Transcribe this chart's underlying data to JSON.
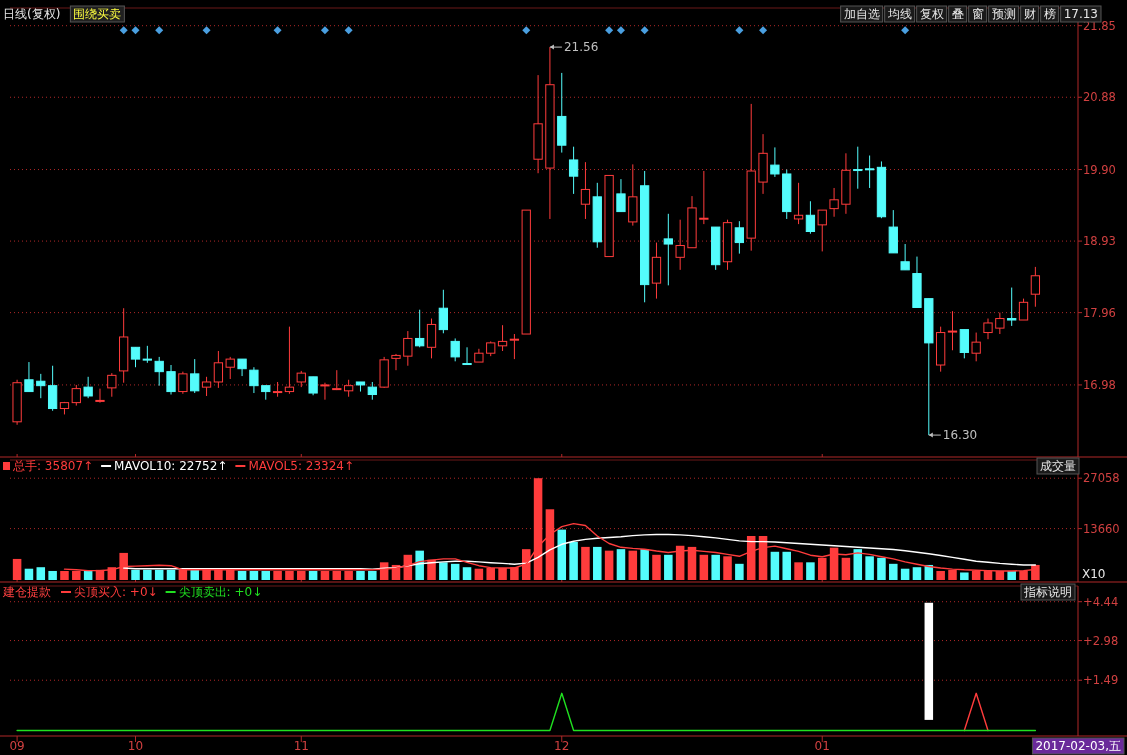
{
  "chart_data": [
    {
      "type": "candlestick",
      "title": "日线(复权)",
      "subtitle": "围绕买卖",
      "categories": [
        "09",
        null,
        null,
        null,
        null,
        null,
        null,
        null,
        null,
        null,
        "10",
        null,
        null,
        null,
        null,
        null,
        null,
        null,
        null,
        null,
        null,
        null,
        null,
        null,
        "11",
        null,
        null,
        null,
        null,
        null,
        null,
        null,
        null,
        null,
        null,
        null,
        null,
        null,
        null,
        null,
        null,
        null,
        null,
        null,
        null,
        null,
        "12",
        null,
        null,
        null,
        null,
        null,
        null,
        null,
        null,
        null,
        null,
        null,
        null,
        null,
        null,
        null,
        null,
        null,
        null,
        null,
        null,
        null,
        "01",
        null,
        null,
        null,
        null,
        null,
        null,
        null,
        null,
        null,
        null,
        null,
        null,
        null,
        null,
        null,
        null,
        null,
        null
      ],
      "ohlc": [
        [
          16.48,
          17.05,
          16.44,
          17.01
        ],
        [
          17.05,
          17.29,
          16.89,
          16.89
        ],
        [
          17.03,
          17.13,
          16.8,
          16.97
        ],
        [
          16.97,
          17.24,
          16.63,
          16.66
        ],
        [
          16.66,
          16.75,
          16.58,
          16.74
        ],
        [
          16.74,
          16.98,
          16.7,
          16.93
        ],
        [
          16.95,
          17.09,
          16.8,
          16.83
        ],
        [
          16.76,
          16.93,
          16.74,
          16.77
        ],
        [
          16.94,
          17.14,
          16.82,
          17.11
        ],
        [
          17.17,
          18.02,
          17.01,
          17.63
        ],
        [
          17.49,
          17.49,
          17.22,
          17.33
        ],
        [
          17.33,
          17.51,
          17.28,
          17.32
        ],
        [
          17.3,
          17.36,
          16.97,
          17.16
        ],
        [
          17.16,
          17.25,
          16.85,
          16.89
        ],
        [
          16.89,
          17.16,
          16.86,
          17.13
        ],
        [
          17.13,
          17.33,
          16.87,
          16.9
        ],
        [
          16.95,
          17.09,
          16.83,
          17.02
        ],
        [
          17.02,
          17.44,
          16.94,
          17.28
        ],
        [
          17.22,
          17.36,
          17.06,
          17.33
        ],
        [
          17.33,
          17.33,
          17.1,
          17.2
        ],
        [
          17.18,
          17.22,
          16.87,
          16.97
        ],
        [
          16.97,
          16.97,
          16.78,
          16.89
        ],
        [
          16.88,
          17.02,
          16.82,
          16.89
        ],
        [
          16.89,
          17.77,
          16.86,
          16.95
        ],
        [
          17.02,
          17.17,
          16.95,
          17.14
        ],
        [
          17.09,
          17.09,
          16.84,
          16.87
        ],
        [
          16.97,
          17.01,
          16.78,
          16.98
        ],
        [
          16.92,
          17.18,
          16.91,
          16.93
        ],
        [
          16.9,
          17.05,
          16.82,
          16.97
        ],
        [
          17.02,
          17.02,
          16.89,
          16.98
        ],
        [
          16.95,
          17.02,
          16.78,
          16.85
        ],
        [
          16.95,
          17.36,
          16.94,
          17.32
        ],
        [
          17.34,
          17.4,
          17.18,
          17.38
        ],
        [
          17.37,
          17.71,
          17.24,
          17.61
        ],
        [
          17.61,
          18.0,
          17.49,
          17.51
        ],
        [
          17.49,
          17.88,
          17.34,
          17.8
        ],
        [
          18.02,
          18.27,
          17.68,
          17.73
        ],
        [
          17.57,
          17.61,
          17.3,
          17.36
        ],
        [
          17.27,
          17.49,
          17.26,
          17.26
        ],
        [
          17.29,
          17.47,
          17.29,
          17.41
        ],
        [
          17.41,
          17.57,
          17.37,
          17.55
        ],
        [
          17.51,
          17.79,
          17.44,
          17.57
        ],
        [
          17.59,
          17.67,
          17.33,
          17.6
        ],
        [
          17.67,
          19.35,
          17.67,
          19.35
        ],
        [
          20.04,
          21.18,
          19.85,
          20.52
        ],
        [
          19.92,
          21.56,
          19.23,
          21.05
        ],
        [
          20.62,
          21.21,
          20.13,
          20.23
        ],
        [
          20.03,
          20.21,
          19.57,
          19.81
        ],
        [
          19.43,
          20.0,
          19.23,
          19.63
        ],
        [
          19.53,
          19.72,
          18.84,
          18.92
        ],
        [
          18.72,
          19.82,
          18.72,
          19.82
        ],
        [
          19.57,
          19.77,
          19.33,
          19.33
        ],
        [
          19.19,
          19.97,
          19.14,
          19.53
        ],
        [
          19.68,
          19.88,
          18.1,
          18.34
        ],
        [
          18.36,
          18.91,
          18.15,
          18.71
        ],
        [
          18.96,
          19.3,
          18.33,
          18.89
        ],
        [
          18.71,
          19.22,
          18.54,
          18.87
        ],
        [
          18.84,
          19.54,
          18.84,
          19.38
        ],
        [
          19.23,
          19.88,
          19.16,
          19.24
        ],
        [
          19.12,
          19.12,
          18.54,
          18.61
        ],
        [
          18.65,
          19.22,
          18.54,
          19.18
        ],
        [
          19.11,
          19.2,
          18.76,
          18.91
        ],
        [
          18.97,
          20.79,
          18.8,
          19.88
        ],
        [
          19.73,
          20.38,
          19.57,
          20.12
        ],
        [
          19.96,
          20.2,
          19.8,
          19.84
        ],
        [
          19.84,
          19.9,
          19.23,
          19.33
        ],
        [
          19.23,
          19.72,
          19.16,
          19.28
        ],
        [
          19.28,
          19.47,
          19.03,
          19.06
        ],
        [
          19.15,
          19.35,
          18.79,
          19.35
        ],
        [
          19.37,
          19.65,
          19.26,
          19.49
        ],
        [
          19.43,
          20.12,
          19.3,
          19.89
        ],
        [
          19.9,
          20.21,
          19.64,
          19.89
        ],
        [
          19.91,
          20.09,
          19.65,
          19.9
        ],
        [
          19.93,
          20.01,
          19.24,
          19.26
        ],
        [
          19.12,
          19.35,
          18.77,
          18.77
        ],
        [
          18.65,
          18.89,
          18.54,
          18.54
        ],
        [
          18.49,
          18.72,
          18.03,
          18.03
        ],
        [
          18.15,
          18.15,
          16.3,
          17.55
        ],
        [
          17.25,
          17.77,
          17.16,
          17.69
        ],
        [
          17.7,
          17.98,
          17.45,
          17.71
        ],
        [
          17.73,
          17.73,
          17.34,
          17.42
        ],
        [
          17.41,
          17.69,
          17.3,
          17.56
        ],
        [
          17.69,
          17.88,
          17.6,
          17.82
        ],
        [
          17.75,
          17.96,
          17.67,
          17.88
        ],
        [
          17.88,
          18.3,
          17.78,
          17.86
        ],
        [
          17.86,
          18.15,
          17.86,
          18.1
        ],
        [
          18.21,
          18.58,
          18.04,
          18.46
        ]
      ],
      "colors": [
        "#ff3c3c",
        "#54fcfc",
        "#54fcfc",
        "#54fcfc",
        "#ff3c3c",
        "#ff3c3c",
        "#54fcfc",
        "#ff3c3c",
        "#ff3c3c",
        "#ff3c3c",
        "#54fcfc",
        "#54fcfc",
        "#54fcfc",
        "#54fcfc",
        "#ff3c3c",
        "#54fcfc",
        "#ff3c3c",
        "#ff3c3c",
        "#ff3c3c",
        "#54fcfc",
        "#54fcfc",
        "#54fcfc",
        "#ff3c3c",
        "#ff3c3c",
        "#ff3c3c",
        "#54fcfc",
        "#ff3c3c",
        "#ff3c3c",
        "#ff3c3c",
        "#54fcfc",
        "#54fcfc",
        "#ff3c3c",
        "#ff3c3c",
        "#ff3c3c",
        "#54fcfc",
        "#ff3c3c",
        "#54fcfc",
        "#54fcfc",
        "#54fcfc",
        "#ff3c3c",
        "#ff3c3c",
        "#ff3c3c",
        "#ff3c3c",
        "#ff3c3c",
        "#ff3c3c",
        "#ff3c3c",
        "#54fcfc",
        "#54fcfc",
        "#ff3c3c",
        "#54fcfc",
        "#ff3c3c",
        "#54fcfc",
        "#ff3c3c",
        "#54fcfc",
        "#ff3c3c",
        "#54fcfc",
        "#ff3c3c",
        "#ff3c3c",
        "#ff3c3c",
        "#54fcfc",
        "#ff3c3c",
        "#54fcfc",
        "#ff3c3c",
        "#ff3c3c",
        "#54fcfc",
        "#54fcfc",
        "#ff3c3c",
        "#54fcfc",
        "#ff3c3c",
        "#ff3c3c",
        "#ff3c3c",
        "#54fcfc",
        "#54fcfc",
        "#54fcfc",
        "#54fcfc",
        "#54fcfc",
        "#54fcfc",
        "#54fcfc",
        "#ff3c3c",
        "#ff3c3c",
        "#54fcfc",
        "#ff3c3c",
        "#ff3c3c",
        "#ff3c3c",
        "#54fcfc",
        "#ff3c3c",
        "#ff3c3c"
      ],
      "series": [
        {
          "type": "scatter",
          "marker": "diamond",
          "color": "#4a9fe0",
          "values": [
            null,
            null,
            null,
            null,
            null,
            null,
            null,
            null,
            null,
            21.79,
            21.79,
            null,
            21.79,
            null,
            null,
            null,
            21.79,
            null,
            null,
            null,
            null,
            null,
            21.79,
            null,
            null,
            null,
            21.79,
            null,
            21.79,
            null,
            null,
            null,
            null,
            null,
            null,
            null,
            null,
            null,
            null,
            null,
            null,
            null,
            null,
            21.79,
            null,
            null,
            null,
            null,
            null,
            null,
            21.79,
            21.79,
            null,
            21.79,
            null,
            null,
            null,
            null,
            null,
            null,
            null,
            21.79,
            null,
            21.79,
            null,
            null,
            null,
            null,
            null,
            null,
            null,
            null,
            null,
            null,
            null,
            21.79,
            null,
            null,
            null,
            null,
            null,
            null,
            null,
            null,
            null,
            null,
            null
          ]
        }
      ],
      "ylim": [
        16.03,
        22.09
      ],
      "yticks": [
        16.98,
        17.96,
        18.93,
        {
          "value": 19.9,
          "label": "19.90"
        },
        20.88,
        21.85
      ],
      "grid": "y",
      "tick_labels": "y",
      "annotations": [
        "21.56",
        "16.30",
        "加自选",
        "均线",
        "复权",
        "叠",
        "窗",
        "预测",
        "财",
        "榜",
        "17.13"
      ]
    },
    {
      "type": "bar",
      "title": "成交量",
      "categories": [
        "09",
        null,
        null,
        null,
        null,
        null,
        null,
        null,
        null,
        null,
        "10",
        null,
        null,
        null,
        null,
        null,
        null,
        null,
        null,
        null,
        null,
        null,
        null,
        null,
        "11",
        null,
        null,
        null,
        null,
        null,
        null,
        null,
        null,
        null,
        null,
        null,
        null,
        null,
        null,
        null,
        null,
        null,
        null,
        null,
        null,
        null,
        "12",
        null,
        null,
        null,
        null,
        null,
        null,
        null,
        null,
        null,
        null,
        null,
        null,
        null,
        null,
        null,
        null,
        null,
        null,
        null,
        null,
        null,
        "01",
        null,
        null,
        null,
        null,
        null,
        null,
        null,
        null,
        null,
        null,
        null,
        null,
        null,
        null,
        null,
        null,
        null,
        null
      ],
      "series": [
        {
          "name": "总手: 35807↑",
          "type": "bar",
          "color": "#ff3c3c",
          "values": [
            5600,
            3000,
            3400,
            2400,
            2400,
            2400,
            2400,
            2700,
            3400,
            7200,
            2700,
            2700,
            2700,
            2700,
            2700,
            2700,
            3000,
            3000,
            2700,
            2400,
            2400,
            2400,
            2400,
            2400,
            2400,
            2400,
            2400,
            2400,
            2400,
            2400,
            2400,
            4700,
            4000,
            6700,
            7800,
            5400,
            4700,
            4300,
            3400,
            3000,
            3200,
            3200,
            3400,
            8200,
            27058,
            18800,
            13400,
            10100,
            8800,
            8800,
            7800,
            8200,
            7800,
            8200,
            6700,
            6700,
            9100,
            8800,
            6700,
            6700,
            6300,
            4300,
            11700,
            11700,
            7500,
            7500,
            4700,
            4700,
            5900,
            8600,
            5900,
            8200,
            6300,
            5900,
            4300,
            3000,
            3400,
            4000,
            2400,
            2700,
            2000,
            2400,
            2400,
            2400,
            2400,
            2400,
            4000
          ],
          "colors": [
            "#ff3c3c",
            "#54fcfc",
            "#54fcfc",
            "#54fcfc",
            "#ff3c3c",
            "#ff3c3c",
            "#54fcfc",
            "#ff3c3c",
            "#ff3c3c",
            "#ff3c3c",
            "#54fcfc",
            "#54fcfc",
            "#54fcfc",
            "#54fcfc",
            "#ff3c3c",
            "#54fcfc",
            "#ff3c3c",
            "#ff3c3c",
            "#ff3c3c",
            "#54fcfc",
            "#54fcfc",
            "#54fcfc",
            "#ff3c3c",
            "#ff3c3c",
            "#ff3c3c",
            "#54fcfc",
            "#ff3c3c",
            "#ff3c3c",
            "#ff3c3c",
            "#54fcfc",
            "#54fcfc",
            "#ff3c3c",
            "#ff3c3c",
            "#ff3c3c",
            "#54fcfc",
            "#ff3c3c",
            "#54fcfc",
            "#54fcfc",
            "#54fcfc",
            "#ff3c3c",
            "#ff3c3c",
            "#ff3c3c",
            "#ff3c3c",
            "#ff3c3c",
            "#ff3c3c",
            "#ff3c3c",
            "#54fcfc",
            "#54fcfc",
            "#ff3c3c",
            "#54fcfc",
            "#ff3c3c",
            "#54fcfc",
            "#ff3c3c",
            "#54fcfc",
            "#ff3c3c",
            "#54fcfc",
            "#ff3c3c",
            "#ff3c3c",
            "#ff3c3c",
            "#54fcfc",
            "#ff3c3c",
            "#54fcfc",
            "#ff3c3c",
            "#ff3c3c",
            "#54fcfc",
            "#54fcfc",
            "#ff3c3c",
            "#54fcfc",
            "#ff3c3c",
            "#ff3c3c",
            "#ff3c3c",
            "#54fcfc",
            "#54fcfc",
            "#54fcfc",
            "#54fcfc",
            "#54fcfc",
            "#54fcfc",
            "#54fcfc",
            "#ff3c3c",
            "#ff3c3c",
            "#54fcfc",
            "#ff3c3c",
            "#ff3c3c",
            "#ff3c3c",
            "#54fcfc",
            "#ff3c3c",
            "#ff3c3c"
          ]
        },
        {
          "name": "MAVOL10: 22752↑",
          "type": "line",
          "color": "#ffffff",
          "values": [
            null,
            null,
            null,
            null,
            null,
            null,
            null,
            null,
            null,
            3200,
            3000,
            3000,
            3000,
            3000,
            3000,
            3000,
            3000,
            3000,
            3000,
            3000,
            3000,
            3000,
            3000,
            3000,
            3000,
            3000,
            3000,
            3000,
            3000,
            3000,
            2900,
            3100,
            3300,
            3800,
            4300,
            4600,
            4800,
            5000,
            5000,
            4800,
            4600,
            4400,
            4200,
            4500,
            6000,
            8000,
            9500,
            10300,
            10800,
            11100,
            11300,
            11500,
            11800,
            12000,
            12100,
            12100,
            12000,
            11800,
            11500,
            11200,
            10800,
            10400,
            10200,
            10200,
            10100,
            9900,
            9700,
            9500,
            9300,
            9100,
            8900,
            8700,
            8500,
            8300,
            8100,
            7800,
            7400,
            7000,
            6500,
            6000,
            5500,
            5000,
            4700,
            4400,
            4200,
            4000,
            4000
          ]
        },
        {
          "name": "MAVOL5: 23324↑",
          "type": "line",
          "color": "#ff3c3c",
          "values": [
            null,
            null,
            null,
            null,
            2900,
            2700,
            2500,
            2500,
            2700,
            3600,
            3700,
            3800,
            3900,
            3800,
            2700,
            2700,
            2700,
            2700,
            2700,
            2700,
            2700,
            2700,
            2700,
            2700,
            2700,
            2700,
            2700,
            2700,
            2700,
            2700,
            2700,
            2900,
            3100,
            3900,
            4900,
            5300,
            5600,
            5600,
            4700,
            3800,
            3300,
            3200,
            3200,
            4200,
            8900,
            12100,
            14200,
            15000,
            14500,
            11700,
            9700,
            8700,
            8400,
            8200,
            7700,
            7300,
            7700,
            7900,
            7600,
            7300,
            6800,
            6300,
            7600,
            8600,
            9000,
            8300,
            7600,
            6600,
            6200,
            6900,
            6700,
            7200,
            6800,
            6200,
            5600,
            4800,
            4200,
            3600,
            3200,
            2900,
            2700,
            2600,
            2500,
            2400,
            2400,
            2500,
            2800
          ]
        }
      ],
      "ylim": [
        0,
        31900
      ],
      "yticks": [
        13660,
        27058
      ],
      "grid": "y",
      "tick_labels": "y",
      "legend": "top left",
      "annotations": [
        "X10"
      ]
    },
    {
      "type": "line",
      "title": "建仓提款",
      "categories": [
        "09",
        null,
        null,
        null,
        null,
        null,
        null,
        null,
        null,
        null,
        "10",
        null,
        null,
        null,
        null,
        null,
        null,
        null,
        null,
        null,
        null,
        null,
        null,
        null,
        "11",
        null,
        null,
        null,
        null,
        null,
        null,
        null,
        null,
        null,
        null,
        null,
        null,
        null,
        null,
        null,
        null,
        null,
        null,
        null,
        null,
        null,
        "12",
        null,
        null,
        null,
        null,
        null,
        null,
        null,
        null,
        null,
        null,
        null,
        null,
        null,
        null,
        null,
        null,
        null,
        null,
        null,
        null,
        null,
        "01",
        null,
        null,
        null,
        null,
        null,
        null,
        null,
        null,
        null,
        null,
        null,
        null,
        null,
        null,
        null,
        null,
        null,
        null
      ],
      "series": [
        {
          "type": "bar",
          "color": "#ffffff",
          "values": [
            null,
            null,
            null,
            null,
            null,
            null,
            null,
            null,
            null,
            null,
            null,
            null,
            null,
            null,
            null,
            null,
            null,
            null,
            null,
            null,
            null,
            null,
            null,
            null,
            null,
            null,
            null,
            null,
            null,
            null,
            null,
            null,
            null,
            null,
            null,
            null,
            null,
            null,
            null,
            null,
            null,
            null,
            null,
            null,
            null,
            null,
            null,
            null,
            null,
            null,
            null,
            null,
            null,
            null,
            null,
            null,
            null,
            null,
            null,
            null,
            null,
            null,
            null,
            null,
            null,
            null,
            null,
            null,
            null,
            null,
            null,
            null,
            null,
            null,
            null,
            null,
            null,
            4.4,
            null,
            null,
            null,
            null,
            null,
            null,
            null,
            null,
            null
          ]
        },
        {
          "name": "尖顶买入: +0↓",
          "type": "line",
          "color": "#ff3c3c",
          "values": [
            null,
            null,
            null,
            null,
            null,
            null,
            null,
            null,
            null,
            null,
            null,
            null,
            null,
            null,
            null,
            null,
            null,
            null,
            null,
            null,
            null,
            null,
            null,
            null,
            null,
            null,
            null,
            null,
            null,
            null,
            null,
            null,
            null,
            null,
            null,
            null,
            null,
            null,
            null,
            null,
            null,
            null,
            null,
            null,
            null,
            null,
            null,
            null,
            null,
            null,
            null,
            null,
            null,
            null,
            null,
            null,
            null,
            null,
            null,
            null,
            null,
            null,
            null,
            null,
            null,
            null,
            null,
            null,
            null,
            null,
            null,
            null,
            null,
            null,
            null,
            null,
            null,
            null,
            null,
            null,
            -0.4,
            1.0,
            -0.4,
            null,
            null,
            null,
            null
          ]
        },
        {
          "name": "尖顶卖出: +0↓",
          "type": "line",
          "color": "#20e020",
          "values": [
            -0.4,
            -0.4,
            -0.4,
            -0.4,
            -0.4,
            -0.4,
            -0.4,
            -0.4,
            -0.4,
            -0.4,
            -0.4,
            -0.4,
            -0.4,
            -0.4,
            -0.4,
            -0.4,
            -0.4,
            -0.4,
            -0.4,
            -0.4,
            -0.4,
            -0.4,
            -0.4,
            -0.4,
            -0.4,
            -0.4,
            -0.4,
            -0.4,
            -0.4,
            -0.4,
            -0.4,
            -0.4,
            -0.4,
            -0.4,
            -0.4,
            -0.4,
            -0.4,
            -0.4,
            -0.4,
            -0.4,
            -0.4,
            -0.4,
            -0.4,
            -0.4,
            -0.4,
            -0.4,
            1.0,
            -0.4,
            -0.4,
            -0.4,
            -0.4,
            -0.4,
            -0.4,
            -0.4,
            -0.4,
            -0.4,
            -0.4,
            -0.4,
            -0.4,
            -0.4,
            -0.4,
            -0.4,
            -0.4,
            -0.4,
            -0.4,
            -0.4,
            -0.4,
            -0.4,
            -0.4,
            -0.4,
            -0.4,
            -0.4,
            -0.4,
            -0.4,
            -0.4,
            -0.4,
            -0.4,
            -0.4,
            -0.4,
            -0.4,
            -0.4,
            -0.4,
            -0.4,
            -0.4,
            -0.4,
            -0.4,
            -0.4
          ]
        }
      ],
      "ylim": [
        -0.53,
        5.03
      ],
      "yticks": [
        {
          "value": 1.49,
          "label": "+1.49"
        },
        {
          "value": 2.98,
          "label": "+2.98"
        },
        {
          "value": 4.44,
          "label": "+4.44"
        }
      ],
      "grid": "y",
      "legend": "top left",
      "annotations": [
        "指标说明",
        "2017-02-03,五"
      ]
    }
  ]
}
